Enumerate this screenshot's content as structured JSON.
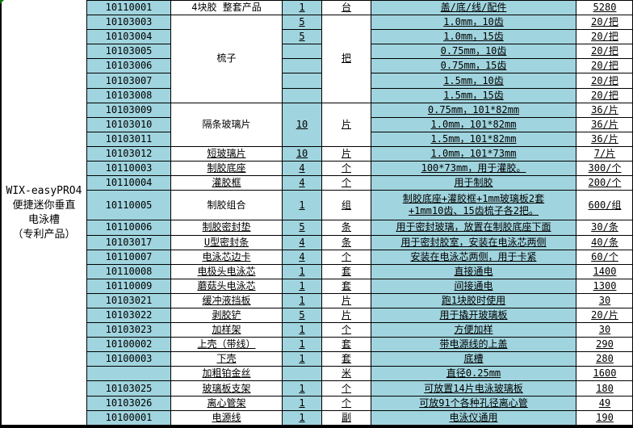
{
  "colors": {
    "cell_fill_teal": "#A0D4DE",
    "grid_border": "#000000",
    "corner_marker_green": "#0B7A0B"
  },
  "table": {
    "product_label_lines": [
      "WIX-easyPRO4",
      "便捷迷你垂直",
      "电泳槽",
      "（专利产品）"
    ],
    "rows": [
      {
        "code": "10110001",
        "name": "4块胶 整套产品",
        "name_u": false,
        "qty": "1",
        "unit": "台",
        "desc": "盖/底/线/配件",
        "price": "5280"
      },
      {
        "code": "10103003",
        "name": "梳子",
        "name_u": false,
        "name_span": 6,
        "qty": "5",
        "unit": "把",
        "unit_span": 6,
        "desc": "1.0mm，10齿",
        "price": "20/把"
      },
      {
        "code": "10103004",
        "qty": "5",
        "desc": "1.0mm，15齿",
        "price": "20/把"
      },
      {
        "code": "10103005",
        "qty": "",
        "desc": "0.75mm，10齿",
        "price": "20/把"
      },
      {
        "code": "10103006",
        "qty": "",
        "desc": "0.75mm，15齿",
        "price": "20/把"
      },
      {
        "code": "10103007",
        "qty": "",
        "desc": "1.5mm，10齿",
        "price": "20/把"
      },
      {
        "code": "10103008",
        "qty": "",
        "desc": "1.5mm，15齿",
        "price": "20/把"
      },
      {
        "code": "10103009",
        "name": "隔条玻璃片",
        "name_u": false,
        "name_span": 3,
        "qty": "10",
        "qty_span": 3,
        "unit": "片",
        "unit_span": 3,
        "desc": "0.75mm，101*82mm",
        "price": "36/片"
      },
      {
        "code": "10103010",
        "desc": "1.0mm，101*82mm",
        "price": "36/片"
      },
      {
        "code": "10103011",
        "desc": "1.5mm，101*82mm",
        "price": "36/片"
      },
      {
        "code": "10103012",
        "name": "短玻璃片",
        "qty": "10",
        "unit": "片",
        "desc": "1.0mm，101*73mm",
        "price": "7/片"
      },
      {
        "code": "10110003",
        "name": "制胶底座",
        "qty": "4",
        "unit": "个",
        "desc": "100*73mm，用于灌胶。",
        "price": "300/个"
      },
      {
        "code": "10110004",
        "name": "灌胶框",
        "qty": "4",
        "unit": "个",
        "desc": "用于制胶",
        "price": "200/个"
      },
      {
        "code": "10110005",
        "name": "制胶组合",
        "name_u": false,
        "qty": "1",
        "unit": "组",
        "desc": "制胶底座+灌胶框+1mm玻璃板2套\n+1mm10齿、15齿梳子各2把。",
        "price": "600/组",
        "tall": true
      },
      {
        "code": "10110006",
        "name": "制胶密封垫",
        "qty": "5",
        "unit": "条",
        "desc": "用于密封玻璃，放置在制胶底座下面",
        "price": "30/条"
      },
      {
        "code": "10103017",
        "name": "U型密封条",
        "qty": "4",
        "unit": "条",
        "desc": "用于密封胶室，安装在电泳芯两侧",
        "price": "40/条"
      },
      {
        "code": "10110007",
        "name": "电泳芯边卡",
        "qty": "4",
        "unit": "个",
        "desc": "安装在电泳芯两侧，用于卡紧",
        "price": "60/个"
      },
      {
        "code": "10110008",
        "name": "电极头电泳芯",
        "qty": "1",
        "unit": "套",
        "desc": "直接通电",
        "price": "1400"
      },
      {
        "code": "10110009",
        "name": "蘑菇头电泳芯",
        "qty": "1",
        "unit": "套",
        "desc": "间接通电",
        "price": "1300"
      },
      {
        "code": "10103021",
        "name": "缓冲液挡板",
        "qty": "1",
        "unit": "片",
        "desc": "跑1块胶时使用",
        "price": "30"
      },
      {
        "code": "10103022",
        "name": "剥胶铲",
        "qty": "5",
        "unit": "片",
        "desc": "用于撬开玻璃板",
        "price": "20/片"
      },
      {
        "code": "10103023",
        "name": "加样架",
        "qty": "1",
        "unit": "个",
        "desc": "方便加样",
        "price": "30"
      },
      {
        "code": "10100002",
        "name": "上壳（带线）",
        "qty": "1",
        "unit": "套",
        "desc": "带电源线的上盖",
        "price": "290"
      },
      {
        "code": "10100003",
        "name": "下壳",
        "qty": "1",
        "unit": "套",
        "desc": "底槽",
        "price": "280"
      },
      {
        "code": "",
        "name": "加粗铂金丝",
        "qty": "",
        "unit": "米",
        "desc": "直径0.25mm",
        "price": "1600"
      },
      {
        "code": "10103025",
        "name": "玻璃板支架",
        "qty": "1",
        "unit": "个",
        "desc": "可放置14片电泳玻璃板",
        "price": "180"
      },
      {
        "code": "10103026",
        "name": "离心管架",
        "qty": "1",
        "unit": "个",
        "desc": "可放91个各种孔径离心管",
        "price": "49"
      },
      {
        "code": "10100001",
        "name": "电源线",
        "qty": "1",
        "unit": "副",
        "desc": "电泳仪通用",
        "price": "190"
      }
    ]
  }
}
